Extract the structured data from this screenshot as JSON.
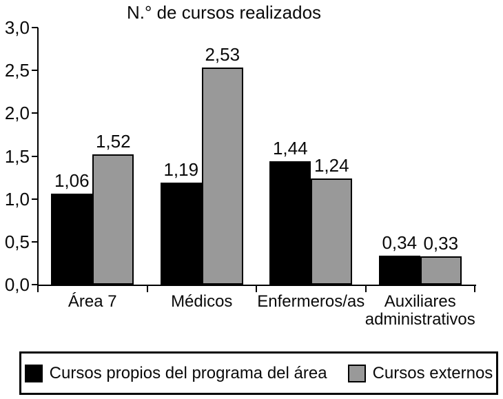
{
  "chart_data": {
    "type": "bar",
    "title": "N.° de cursos realizados",
    "categories": [
      "Área 7",
      "Médicos",
      "Enfermeros/as",
      "Auxiliares administrativos"
    ],
    "series": [
      {
        "name": "Cursos propios del programa del área",
        "color": "#000000",
        "values": [
          1.06,
          1.19,
          1.44,
          0.34
        ],
        "labels": [
          "1,06",
          "1,19",
          "1,44",
          "0,34"
        ]
      },
      {
        "name": "Cursos externos",
        "color": "#999999",
        "values": [
          1.52,
          2.53,
          1.24,
          0.33
        ],
        "labels": [
          "1,52",
          "2,53",
          "1,24",
          "0,33"
        ]
      }
    ],
    "ylim": [
      0,
      3
    ],
    "ytick_step": 0.5,
    "ytick_labels": [
      "0,0",
      "0,5",
      "1,0",
      "1,5",
      "2,0",
      "2,5",
      "3,0"
    ],
    "xlabel": "",
    "ylabel": "",
    "grid": false,
    "legend_position": "bottom"
  },
  "legend": {
    "items": [
      {
        "label": "Cursos propios del programa del área",
        "color": "#000000"
      },
      {
        "label": "Cursos externos",
        "color": "#999999"
      }
    ]
  }
}
